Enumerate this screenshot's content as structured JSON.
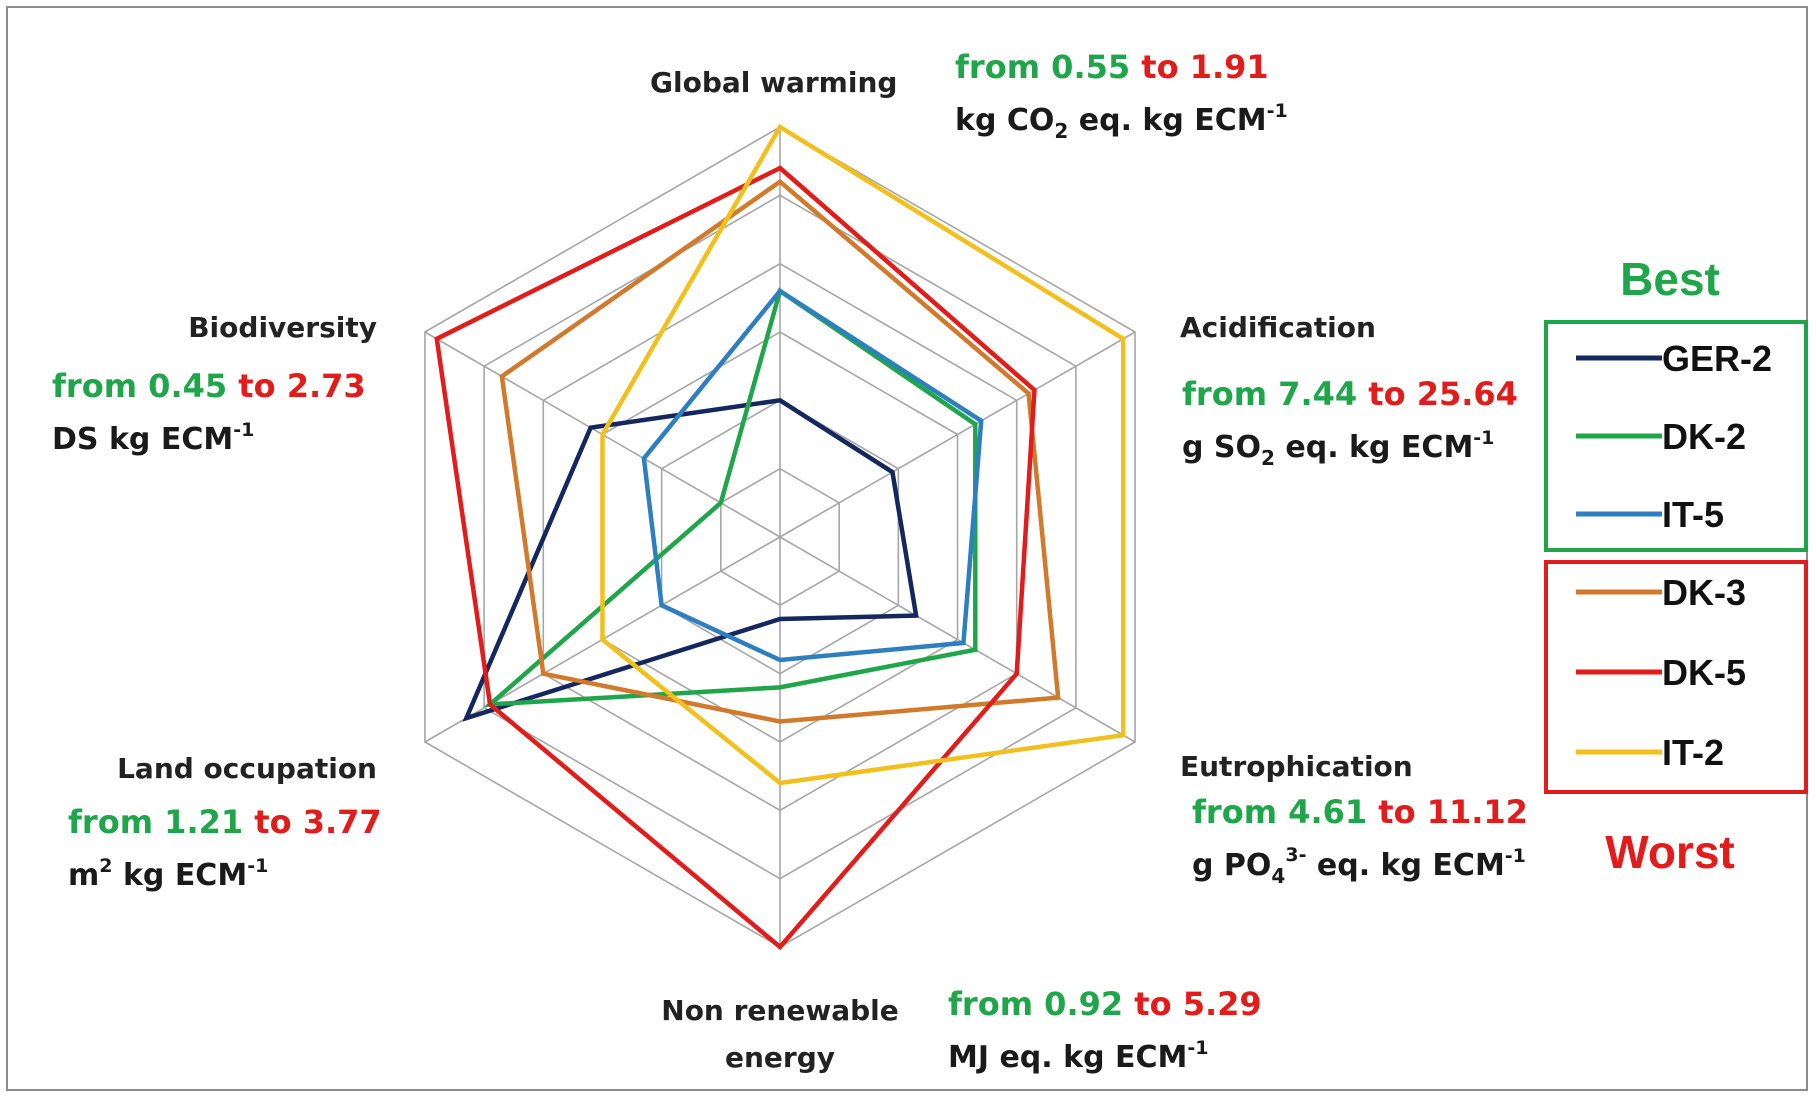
{
  "colors": {
    "green": "#1fa64a",
    "red": "#e21b1b",
    "grid": "#a6a6a6",
    "best_box": "#1fa64a",
    "worst_box": "#e21b1b"
  },
  "chart_data": {
    "type": "radar",
    "title": "",
    "grid_levels": 6,
    "max": 6,
    "axes": [
      {
        "name": "Global warming",
        "range_from": "from 0.55",
        "range_to": "to 1.91",
        "unit": "kg CO",
        "unit_sub": "2",
        "unit_rest": " eq. kg ECM",
        "unit_sup": "-1"
      },
      {
        "name": "Acidification",
        "range_from": "from 7.44",
        "range_to": "to 25.64",
        "unit": "g SO",
        "unit_sub": "2",
        "unit_rest": " eq. kg ECM",
        "unit_sup": "-1"
      },
      {
        "name": "Eutrophication",
        "range_from": "from 4.61",
        "range_to": "to 11.12",
        "unit": "g PO",
        "unit_sub": "4",
        "unit_sup_pre": "3-",
        "unit_rest": " eq. kg ECM",
        "unit_sup": "-1"
      },
      {
        "name": "Non renewable",
        "name2": "energy",
        "range_from": "from 0.92",
        "range_to": "to 5.29",
        "unit": "MJ eq. kg ECM",
        "unit_sub": "",
        "unit_rest": "",
        "unit_sup": "-1"
      },
      {
        "name": "Land occupation",
        "range_from": "from 1.21",
        "range_to": "to 3.77",
        "unit": "m",
        "unit_sup_pre": "2",
        "unit_sub": "",
        "unit_rest": " kg ECM",
        "unit_sup": "-1"
      },
      {
        "name": "Biodiversity",
        "range_from": "from 0.45",
        "range_to": "to 2.73",
        "unit": "DS kg ECM",
        "unit_sub": "",
        "unit_rest": "",
        "unit_sup": "-1"
      }
    ],
    "series": [
      {
        "name": "GER-2",
        "color": "#14275e",
        "values": [
          2.0,
          1.9,
          2.3,
          1.2,
          5.3,
          3.2
        ]
      },
      {
        "name": "DK-2",
        "color": "#1fa64a",
        "values": [
          3.6,
          3.3,
          3.3,
          2.2,
          4.9,
          1.0
        ]
      },
      {
        "name": "IT-5",
        "color": "#2e7fc0",
        "values": [
          3.6,
          3.4,
          3.1,
          1.8,
          2.0,
          2.3
        ]
      },
      {
        "name": "DK-3",
        "color": "#d17a2b",
        "values": [
          5.2,
          4.2,
          4.7,
          2.7,
          4.0,
          4.7
        ]
      },
      {
        "name": "DK-5",
        "color": "#e21b1b",
        "values": [
          5.4,
          4.3,
          4.0,
          6.0,
          4.9,
          5.8
        ]
      },
      {
        "name": "IT-2",
        "color": "#f2c01d",
        "values": [
          6.0,
          5.8,
          5.8,
          3.6,
          3.0,
          3.0
        ]
      }
    ],
    "legend_position": "right",
    "legend_groups": [
      {
        "label": "Best",
        "members": [
          "GER-2",
          "DK-2",
          "IT-5"
        ]
      },
      {
        "label": "Worst",
        "members": [
          "DK-3",
          "DK-5",
          "IT-2"
        ]
      }
    ]
  }
}
